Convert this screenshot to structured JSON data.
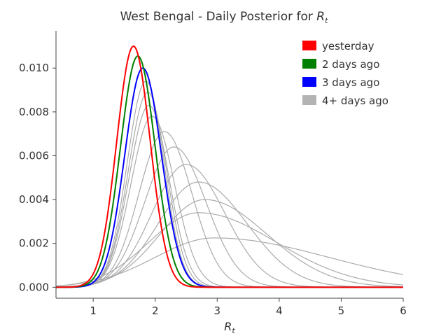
{
  "chart_data": {
    "type": "line",
    "title": "West Bengal - Daily Posterior for ",
    "title_math": "R",
    "title_math_sub": "t",
    "xlabel": "R",
    "xlabel_sub": "t",
    "ylabel": "",
    "xlim": [
      0.4,
      6.0
    ],
    "ylim": [
      -0.0005,
      0.0117
    ],
    "x_ticks": [
      1,
      2,
      3,
      4,
      5,
      6
    ],
    "x_tick_labels": [
      "1",
      "2",
      "3",
      "4",
      "5",
      "6"
    ],
    "y_ticks": [
      0.0,
      0.002,
      0.004,
      0.006,
      0.008,
      0.01
    ],
    "y_tick_labels": [
      "0.000",
      "0.002",
      "0.004",
      "0.006",
      "0.008",
      "0.010"
    ],
    "grid": false,
    "legend_position": "top-right",
    "legend": [
      {
        "label": "yesterday",
        "color": "#ff0000"
      },
      {
        "label": "2 days ago",
        "color": "#008000"
      },
      {
        "label": "3 days ago",
        "color": "#0000ff"
      },
      {
        "label": "4+ days ago",
        "color": "#b3b3b3"
      }
    ],
    "series": [
      {
        "group": "4+ days ago",
        "color": "#aaaaaa",
        "peak_x": 2.95,
        "peak_y": 0.00225,
        "width_left": 0.95,
        "width_right": 1.85
      },
      {
        "group": "4+ days ago",
        "color": "#aaaaaa",
        "peak_x": 2.7,
        "peak_y": 0.0034,
        "width_left": 0.8,
        "width_right": 1.25
      },
      {
        "group": "4+ days ago",
        "color": "#aaaaaa",
        "peak_x": 2.8,
        "peak_y": 0.004,
        "width_left": 0.72,
        "width_right": 1.0
      },
      {
        "group": "4+ days ago",
        "color": "#aaaaaa",
        "peak_x": 2.7,
        "peak_y": 0.0048,
        "width_left": 0.65,
        "width_right": 0.78
      },
      {
        "group": "4+ days ago",
        "color": "#aaaaaa",
        "peak_x": 2.5,
        "peak_y": 0.0056,
        "width_left": 0.55,
        "width_right": 0.62
      },
      {
        "group": "4+ days ago",
        "color": "#aaaaaa",
        "peak_x": 2.3,
        "peak_y": 0.0064,
        "width_left": 0.47,
        "width_right": 0.52
      },
      {
        "group": "4+ days ago",
        "color": "#aaaaaa",
        "peak_x": 2.15,
        "peak_y": 0.0071,
        "width_left": 0.41,
        "width_right": 0.44
      },
      {
        "group": "4+ days ago",
        "color": "#aaaaaa",
        "peak_x": 1.95,
        "peak_y": 0.0078,
        "width_left": 0.34,
        "width_right": 0.36
      },
      {
        "group": "4+ days ago",
        "color": "#aaaaaa",
        "peak_x": 1.9,
        "peak_y": 0.0083,
        "width_left": 0.32,
        "width_right": 0.32
      },
      {
        "group": "4+ days ago",
        "color": "#aaaaaa",
        "peak_x": 1.88,
        "peak_y": 0.0089,
        "width_left": 0.31,
        "width_right": 0.3
      },
      {
        "group": "4+ days ago",
        "color": "#aaaaaa",
        "peak_x": 1.85,
        "peak_y": 0.0094,
        "width_left": 0.3,
        "width_right": 0.29
      },
      {
        "group": "3 days ago",
        "color": "#0000ff",
        "peak_x": 1.8,
        "peak_y": 0.01,
        "width_left": 0.29,
        "width_right": 0.3
      },
      {
        "group": "2 days ago",
        "color": "#008000",
        "peak_x": 1.72,
        "peak_y": 0.01055,
        "width_left": 0.28,
        "width_right": 0.28
      },
      {
        "group": "yesterday",
        "color": "#ff0000",
        "peak_x": 1.65,
        "peak_y": 0.011,
        "width_left": 0.27,
        "width_right": 0.27
      }
    ]
  }
}
